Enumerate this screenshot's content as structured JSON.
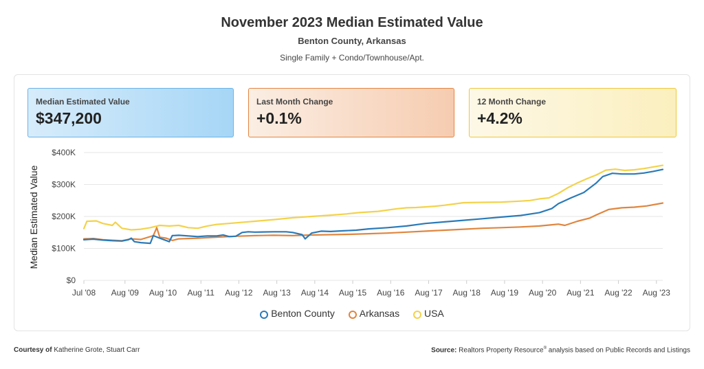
{
  "header": {
    "title": "November 2023 Median Estimated Value",
    "subtitle": "Benton County, Arkansas",
    "property_types": "Single Family + Condo/Townhouse/Apt."
  },
  "stats": [
    {
      "label": "Median Estimated Value",
      "value": "$347,200"
    },
    {
      "label": "Last Month Change",
      "value": "+0.1%"
    },
    {
      "label": "12 Month Change",
      "value": "+4.2%"
    }
  ],
  "legend": [
    "Benton County",
    "Arkansas",
    "USA"
  ],
  "footer": {
    "courtesy_label": "Courtesy of",
    "courtesy_names": "Katherine Grote, Stuart Carr",
    "source_label": "Source:",
    "source_text_a": "Realtors Property Resource",
    "source_reg": "®",
    "source_text_b": " analysis based on Public Records and Listings"
  },
  "colors": {
    "benton": "#2a7ab8",
    "arkansas": "#e0853e",
    "usa": "#f3d24a"
  },
  "chart_data": {
    "type": "line",
    "title": "",
    "xlabel": "",
    "ylabel": "Median Estimated Value",
    "ylim": [
      0,
      400000
    ],
    "yticks": [
      0,
      100000,
      200000,
      300000,
      400000
    ],
    "ytick_labels": [
      "$0",
      "$100K",
      "$200K",
      "$300K",
      "$400K"
    ],
    "xlim": [
      2008.5,
      2023.75
    ],
    "xticks": [
      2008.5,
      2009.583,
      2010.583,
      2011.583,
      2012.583,
      2013.583,
      2014.583,
      2015.583,
      2016.583,
      2017.583,
      2018.583,
      2019.583,
      2020.583,
      2021.583,
      2022.583,
      2023.583
    ],
    "xtick_labels": [
      "Jul '08",
      "Aug '09",
      "Aug '10",
      "Aug '11",
      "Aug '12",
      "Aug '13",
      "Aug '14",
      "Aug '15",
      "Aug '16",
      "Aug '17",
      "Aug '18",
      "Aug '19",
      "Aug '20",
      "Aug '21",
      "Aug '22",
      "Aug '23"
    ],
    "grid": true,
    "legend_position": "bottom",
    "series": [
      {
        "name": "Benton County",
        "x": [
          2008.5,
          2008.75,
          2009.0,
          2009.25,
          2009.5,
          2009.67,
          2009.75,
          2009.83,
          2010.0,
          2010.25,
          2010.33,
          2010.5,
          2010.75,
          2010.83,
          2011.0,
          2011.5,
          2011.75,
          2012.0,
          2012.17,
          2012.33,
          2012.5,
          2012.67,
          2012.83,
          2013.0,
          2013.5,
          2013.83,
          2014.0,
          2014.25,
          2014.33,
          2014.5,
          2014.58,
          2014.75,
          2015.0,
          2015.33,
          2015.67,
          2016.0,
          2016.5,
          2017.0,
          2017.5,
          2018.0,
          2018.5,
          2019.0,
          2019.5,
          2020.0,
          2020.5,
          2020.83,
          2021.0,
          2021.33,
          2021.67,
          2022.0,
          2022.17,
          2022.42,
          2022.67,
          2023.0,
          2023.25,
          2023.5,
          2023.75
        ],
        "y": [
          127000,
          129000,
          126000,
          124000,
          123000,
          127000,
          132000,
          121000,
          118000,
          116000,
          140000,
          132000,
          121000,
          140000,
          141000,
          137000,
          139000,
          139000,
          142000,
          137000,
          138000,
          150000,
          152000,
          151000,
          152000,
          152000,
          150000,
          143000,
          130000,
          148000,
          150000,
          154000,
          153000,
          155000,
          157000,
          161000,
          165000,
          170000,
          178000,
          183000,
          188000,
          193000,
          198000,
          203000,
          212000,
          225000,
          240000,
          258000,
          275000,
          305000,
          325000,
          335000,
          333000,
          333000,
          336000,
          341000,
          347000
        ]
      },
      {
        "name": "Arkansas",
        "x": [
          2008.5,
          2008.75,
          2009.0,
          2009.5,
          2009.75,
          2010.0,
          2010.33,
          2010.42,
          2010.5,
          2010.67,
          2010.83,
          2011.0,
          2011.5,
          2012.0,
          2012.5,
          2013.0,
          2013.5,
          2014.0,
          2014.5,
          2015.0,
          2015.5,
          2016.0,
          2016.5,
          2017.0,
          2017.5,
          2018.0,
          2018.5,
          2019.0,
          2019.5,
          2020.0,
          2020.5,
          2020.83,
          2021.0,
          2021.17,
          2021.5,
          2021.83,
          2022.0,
          2022.33,
          2022.67,
          2023.0,
          2023.33,
          2023.75
        ],
        "y": [
          130000,
          131000,
          127000,
          124000,
          130000,
          128000,
          140000,
          165000,
          135000,
          132000,
          125000,
          130000,
          132000,
          135000,
          138000,
          140000,
          141000,
          140000,
          142000,
          143000,
          144000,
          146000,
          148000,
          151000,
          154000,
          157000,
          160000,
          163000,
          165000,
          167000,
          170000,
          174000,
          176000,
          172000,
          185000,
          195000,
          205000,
          222000,
          227000,
          229000,
          233000,
          242000
        ]
      },
      {
        "name": "USA",
        "x": [
          2008.5,
          2008.58,
          2008.83,
          2009.0,
          2009.25,
          2009.33,
          2009.5,
          2009.75,
          2010.0,
          2010.25,
          2010.5,
          2010.75,
          2011.0,
          2011.25,
          2011.5,
          2011.75,
          2012.0,
          2012.5,
          2013.0,
          2013.5,
          2014.0,
          2014.5,
          2015.0,
          2015.42,
          2015.75,
          2016.0,
          2016.25,
          2016.5,
          2016.75,
          2017.0,
          2017.25,
          2017.5,
          2017.75,
          2018.0,
          2018.25,
          2018.5,
          2019.0,
          2019.5,
          2020.0,
          2020.25,
          2020.5,
          2020.75,
          2021.0,
          2021.25,
          2021.5,
          2021.75,
          2022.0,
          2022.25,
          2022.5,
          2022.75,
          2023.0,
          2023.25,
          2023.5,
          2023.75
        ],
        "y": [
          162000,
          185000,
          186000,
          178000,
          172000,
          182000,
          163000,
          158000,
          160000,
          165000,
          172000,
          170000,
          172000,
          165000,
          163000,
          170000,
          175000,
          180000,
          185000,
          190000,
          196000,
          200000,
          204000,
          208000,
          212000,
          214000,
          216000,
          220000,
          224000,
          227000,
          228000,
          230000,
          232000,
          235000,
          239000,
          243000,
          244000,
          245000,
          248000,
          250000,
          255000,
          258000,
          272000,
          290000,
          305000,
          318000,
          330000,
          345000,
          348000,
          344000,
          346000,
          350000,
          355000,
          360000
        ]
      }
    ]
  }
}
